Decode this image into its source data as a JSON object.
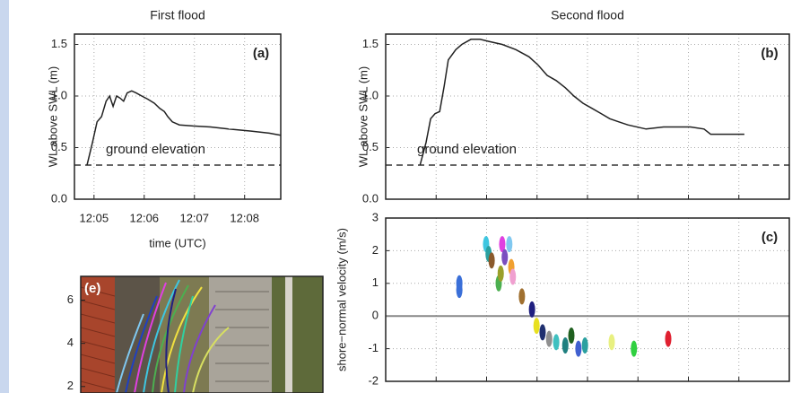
{
  "chart_data": [
    {
      "type": "line",
      "title": "First flood",
      "panel_label": "(a)",
      "y_label": "WL above SWL (m)",
      "x_label": "time (UTC)",
      "x": [
        4.86,
        4.97,
        5.06,
        5.15,
        5.24,
        5.31,
        5.38,
        5.45,
        5.52,
        5.59,
        5.66,
        5.75,
        5.84,
        5.95,
        6.07,
        6.2,
        6.31,
        6.4,
        6.47,
        6.56,
        6.7,
        6.97,
        7.32,
        7.68,
        8.13,
        8.49,
        8.72
      ],
      "values": [
        0.33,
        0.55,
        0.75,
        0.8,
        0.95,
        1.0,
        0.9,
        1.0,
        0.98,
        0.95,
        1.03,
        1.05,
        1.03,
        1.0,
        0.97,
        0.93,
        0.88,
        0.85,
        0.8,
        0.75,
        0.72,
        0.71,
        0.7,
        0.68,
        0.66,
        0.64,
        0.62
      ],
      "color": "#222222",
      "xlim": [
        4.61,
        8.72
      ],
      "ylim": [
        0,
        1.6
      ],
      "xticks": [
        {
          "value": 5,
          "label": "12:05"
        },
        {
          "value": 6,
          "label": "12:06"
        },
        {
          "value": 7,
          "label": "12:07"
        },
        {
          "value": 8,
          "label": "12:08"
        }
      ],
      "yticks": [
        {
          "value": 0,
          "label": "0.0"
        },
        0.5,
        {
          "value": 1,
          "label": "1.0"
        },
        1.5
      ],
      "show_xtick_labels": true,
      "ground_level": 0.33,
      "ground_label": "ground elevation",
      "grid": true
    },
    {
      "type": "line",
      "title": "Second flood",
      "panel_label": "(b)",
      "y_label": "WL above SWL (m)",
      "x": [
        0.68,
        0.8,
        0.89,
        0.98,
        1.07,
        1.16,
        1.24,
        1.39,
        1.51,
        1.69,
        1.87,
        2.04,
        2.31,
        2.58,
        2.84,
        3.02,
        3.2,
        3.38,
        3.56,
        3.73,
        3.91,
        4.09,
        4.27,
        4.44,
        4.62,
        4.8,
        5.16,
        5.51,
        6.04,
        6.31,
        6.44,
        7.11
      ],
      "values": [
        0.33,
        0.55,
        0.78,
        0.83,
        0.85,
        1.1,
        1.35,
        1.45,
        1.5,
        1.55,
        1.55,
        1.53,
        1.5,
        1.45,
        1.38,
        1.3,
        1.2,
        1.15,
        1.08,
        1.0,
        0.93,
        0.88,
        0.83,
        0.78,
        0.75,
        0.72,
        0.68,
        0.7,
        0.7,
        0.68,
        0.63,
        0.63
      ],
      "color": "#222222",
      "xlim": [
        0,
        8
      ],
      "ylim": [
        0,
        1.6
      ],
      "xticks": [
        1,
        2,
        3,
        4,
        5,
        6,
        7
      ],
      "yticks": [
        {
          "value": 0,
          "label": "0.0"
        },
        0.5,
        {
          "value": 1,
          "label": "1.0"
        },
        1.5
      ],
      "show_xtick_labels": false,
      "ground_level": 0.33,
      "ground_label": "ground elevation",
      "grid": true
    },
    {
      "type": "scatter",
      "panel_label": "(c)",
      "y_label": "shore−normal velocity (m/s)",
      "x": [
        1.46,
        1.46,
        1.99,
        2.04,
        2.1,
        2.24,
        2.28,
        2.31,
        2.36,
        2.45,
        2.49,
        2.52,
        2.7,
        2.9,
        2.99,
        3.11,
        3.24,
        3.38,
        3.56,
        3.68,
        3.82,
        3.95,
        4.48,
        4.92,
        5.6
      ],
      "values": [
        0.8,
        1.0,
        2.2,
        1.9,
        1.7,
        1.0,
        1.3,
        2.2,
        1.8,
        2.2,
        1.5,
        1.2,
        0.6,
        0.2,
        -0.3,
        -0.5,
        -0.7,
        -0.8,
        -0.9,
        -0.6,
        -1.0,
        -0.9,
        -0.8,
        -1.0,
        -0.7
      ],
      "colors": [
        "#3a6fd8",
        "#3a6fd8",
        "#3ec6e0",
        "#2aa0a0",
        "#8b5a2b",
        "#4caf50",
        "#9aa02a",
        "#e040e0",
        "#7a4fc0",
        "#80c8f0",
        "#f0a030",
        "#f0a0d0",
        "#a07030",
        "#202080",
        "#e8e020",
        "#203070",
        "#909090",
        "#40c0c0",
        "#208080",
        "#206020",
        "#4060d0",
        "#2aa0a0",
        "#e8f080",
        "#30d040",
        "#e02030"
      ],
      "xlim": [
        0,
        8
      ],
      "ylim": [
        -2,
        3
      ],
      "xticks": [
        1,
        2,
        3,
        4,
        5,
        6,
        7
      ],
      "yticks": [
        -2,
        -1,
        0,
        1,
        2,
        3
      ],
      "show_xtick_labels": false,
      "zero_line": true,
      "grid": true
    },
    {
      "type": "image",
      "panel_label": "(e)",
      "ylim": [
        1.7,
        7.1
      ],
      "yticks": [
        2,
        4,
        6
      ]
    }
  ]
}
